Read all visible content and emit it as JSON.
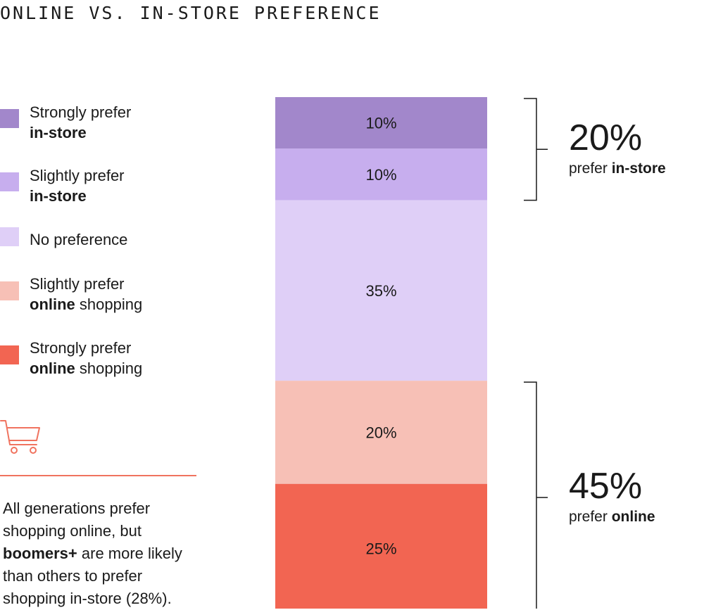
{
  "chart_data": {
    "type": "bar",
    "stacked": true,
    "title": "ONLINE VS. IN-STORE PREFERENCE",
    "categories": [
      "Strongly prefer in-store",
      "Slightly prefer in-store",
      "No preference",
      "Slightly prefer online shopping",
      "Strongly prefer online shopping"
    ],
    "values": [
      10,
      10,
      35,
      20,
      25
    ],
    "value_labels": [
      "10%",
      "10%",
      "35%",
      "20%",
      "25%"
    ],
    "colors": [
      "#a287cb",
      "#c7aeee",
      "#dfcff7",
      "#f7c0b6",
      "#f26552"
    ],
    "legend": [
      {
        "line1": "Strongly prefer",
        "bold": "in-store",
        "rest": ""
      },
      {
        "line1": "Slightly prefer",
        "bold": "in-store",
        "rest": ""
      },
      {
        "line1": "No preference",
        "bold": "",
        "rest": ""
      },
      {
        "line1": "Slightly prefer",
        "bold": "online",
        "rest": " shopping"
      },
      {
        "line1": "Strongly prefer",
        "bold": "online",
        "rest": " shopping"
      }
    ],
    "legend_placement": "left",
    "summaries": [
      {
        "value": "20%",
        "text": "prefer ",
        "bold": "in-store",
        "from": 0,
        "to": 1
      },
      {
        "value": "45%",
        "text": "prefer ",
        "bold": "online",
        "from": 3,
        "to": 4
      }
    ]
  },
  "note": {
    "before": "All generations prefer shopping online, but ",
    "bold": "boomers+",
    "after": " are more likely than others to prefer shopping in-store (28%)."
  },
  "icons": {
    "cart": "shopping-cart-icon"
  }
}
